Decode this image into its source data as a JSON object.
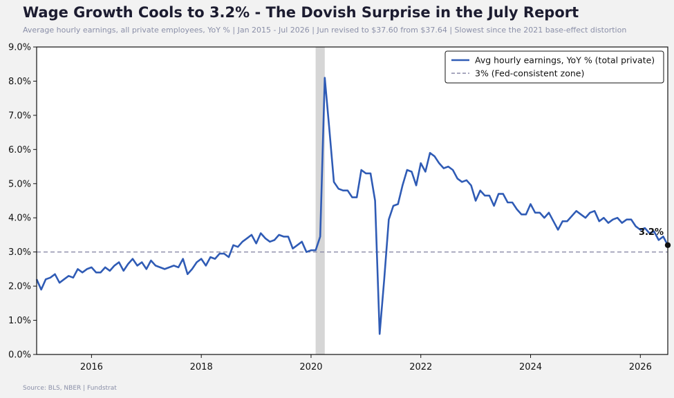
{
  "chart_data": {
    "type": "line",
    "title": "Wage Growth Cools to 3.2% - The Dovish Surprise in the July Report",
    "subtitle": "Average hourly earnings, all private employees, YoY % | Jan 2015 - Jul 2026 | Jun revised to $37.60 from $37.64 | Slowest since the 2021 base-effect distortion",
    "source": "Source: BLS, NBER | Fundstrat",
    "xlabel": "",
    "ylabel": "",
    "xlim": [
      "2015-01",
      "2026-07"
    ],
    "ylim": [
      0,
      9
    ],
    "x_ticks": [
      "2016",
      "2018",
      "2020",
      "2022",
      "2024",
      "2026"
    ],
    "y_ticks": [
      "0.0%",
      "1.0%",
      "2.0%",
      "3.0%",
      "4.0%",
      "5.0%",
      "6.0%",
      "7.0%",
      "8.0%",
      "9.0%"
    ],
    "grid": false,
    "legend_position": "top-right",
    "recession_shading": {
      "start": "2020-02",
      "end": "2020-04"
    },
    "reference_line": {
      "name": "3% (Fed-consistent zone)",
      "value": 3.0,
      "color": "#8a8aa8",
      "style": "dashed"
    },
    "end_label": "3.2%",
    "series": [
      {
        "name": "Avg hourly earnings, YoY % (total private)",
        "color": "#2f5bb5",
        "start": "2015-01",
        "values": [
          2.2,
          1.9,
          2.2,
          2.25,
          2.35,
          2.1,
          2.2,
          2.3,
          2.25,
          2.5,
          2.4,
          2.5,
          2.55,
          2.4,
          2.4,
          2.55,
          2.45,
          2.6,
          2.7,
          2.45,
          2.65,
          2.8,
          2.6,
          2.7,
          2.5,
          2.75,
          2.6,
          2.55,
          2.5,
          2.55,
          2.6,
          2.55,
          2.8,
          2.35,
          2.5,
          2.7,
          2.8,
          2.6,
          2.85,
          2.8,
          2.95,
          2.95,
          2.85,
          3.2,
          3.15,
          3.3,
          3.4,
          3.5,
          3.25,
          3.55,
          3.4,
          3.3,
          3.35,
          3.5,
          3.45,
          3.45,
          3.1,
          3.2,
          3.3,
          3.0,
          3.05,
          3.05,
          3.45,
          8.1,
          6.6,
          5.05,
          4.85,
          4.8,
          4.8,
          4.6,
          4.6,
          5.4,
          5.3,
          5.3,
          4.5,
          0.6,
          2.2,
          3.95,
          4.35,
          4.4,
          4.95,
          5.4,
          5.35,
          4.95,
          5.6,
          5.35,
          5.9,
          5.8,
          5.6,
          5.45,
          5.5,
          5.4,
          5.15,
          5.05,
          5.1,
          4.95,
          4.5,
          4.8,
          4.65,
          4.65,
          4.35,
          4.7,
          4.7,
          4.45,
          4.45,
          4.25,
          4.1,
          4.1,
          4.4,
          4.15,
          4.15,
          4.0,
          4.15,
          3.9,
          3.65,
          3.9,
          3.9,
          4.05,
          4.2,
          4.1,
          4.0,
          4.15,
          4.2,
          3.9,
          4.0,
          3.85,
          3.95,
          4.0,
          3.85,
          3.95,
          3.95,
          3.75,
          3.65,
          3.7,
          3.55,
          3.6,
          3.35,
          3.45,
          3.2
        ]
      }
    ]
  }
}
